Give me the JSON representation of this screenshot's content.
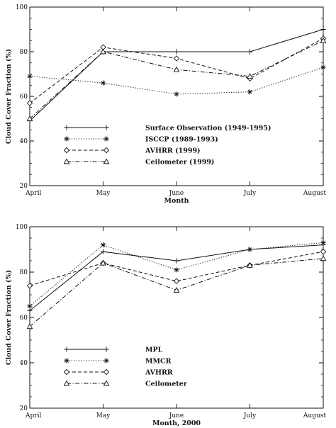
{
  "chart_data": [
    {
      "type": "line",
      "title": "",
      "xlabel": "Month",
      "ylabel": "Cloud Cover Fraction (%)",
      "categories": [
        "April",
        "May",
        "June",
        "July",
        "August"
      ],
      "ylim": [
        20,
        100
      ],
      "yticks": [
        20,
        40,
        60,
        80,
        100
      ],
      "grid": false,
      "legend_position": "lower-center",
      "series": [
        {
          "name": "Surface Observation (1949-1995)",
          "style": "solid",
          "marker": "plus",
          "values": [
            49,
            80,
            80,
            80,
            90
          ]
        },
        {
          "name": "ISCCP (1989-1993)",
          "style": "dotted",
          "marker": "star",
          "values": [
            69,
            66,
            61,
            62,
            73
          ]
        },
        {
          "name": "AVHRR (1999)",
          "style": "dashed",
          "marker": "diamond",
          "values": [
            57,
            82,
            77,
            68,
            86
          ]
        },
        {
          "name": "Ceilometer (1999)",
          "style": "dashdot",
          "marker": "triangle",
          "values": [
            50,
            80,
            72,
            69,
            85
          ]
        }
      ]
    },
    {
      "type": "line",
      "title": "",
      "xlabel": "Month, 2000",
      "ylabel": "Cloud Cover Fraction (%)",
      "categories": [
        "April",
        "May",
        "June",
        "July",
        "August"
      ],
      "ylim": [
        20,
        100
      ],
      "yticks": [
        20,
        40,
        60,
        80,
        100
      ],
      "grid": false,
      "legend_position": "lower-center",
      "series": [
        {
          "name": "MPL",
          "style": "solid",
          "marker": "plus",
          "values": [
            63,
            89,
            85,
            90,
            92
          ]
        },
        {
          "name": "MMCR",
          "style": "dotted",
          "marker": "star",
          "values": [
            65,
            92,
            81,
            90,
            93
          ]
        },
        {
          "name": "AVHRR",
          "style": "dashed",
          "marker": "diamond",
          "values": [
            74,
            84,
            76,
            83,
            89
          ]
        },
        {
          "name": "Ceilometer",
          "style": "dashdot",
          "marker": "triangle",
          "values": [
            56,
            84,
            72,
            83,
            86
          ]
        }
      ]
    }
  ]
}
